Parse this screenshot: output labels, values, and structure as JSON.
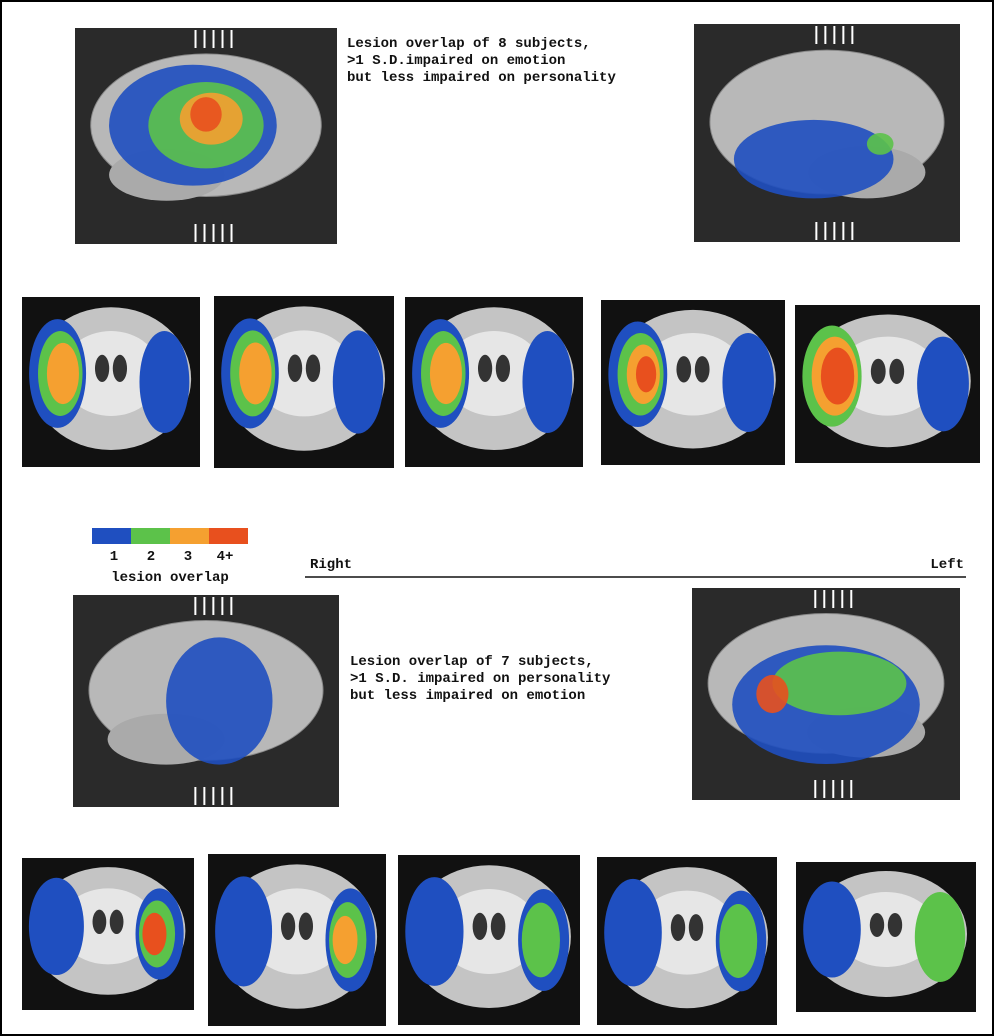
{
  "top_caption": [
    "Lesion overlap of 8 subjects,",
    ">1 S.D.impaired on emotion",
    "but less impaired on personality"
  ],
  "bottom_caption": [
    "Lesion overlap of 7 subjects,",
    ">1 S.D. impaired on personality",
    "but less impaired on emotion"
  ],
  "legend": {
    "labels": [
      "1",
      "2",
      "3",
      "4+"
    ],
    "colors": [
      "#1f4fc0",
      "#5cc24a",
      "#f5a030",
      "#e8501e"
    ],
    "title": "lesion overlap"
  },
  "orientation": {
    "left": "Right",
    "right": "Left"
  }
}
